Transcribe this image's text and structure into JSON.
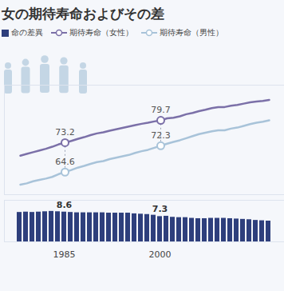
{
  "chart_data": {
    "type": "line",
    "title": "女の期待寿命およびその差",
    "categories": [
      null,
      null,
      null,
      null,
      null,
      null,
      null,
      "1985",
      null,
      null,
      null,
      null,
      null,
      null,
      null,
      null,
      null,
      null,
      null,
      null,
      null,
      null,
      "2000",
      null,
      null,
      null,
      null,
      null,
      null,
      null,
      null,
      null,
      null,
      null,
      null,
      null,
      null,
      null,
      null,
      null
    ],
    "series": [
      {
        "name": "命の差異",
        "type": "bar",
        "axis": "y2",
        "color": "#2e3f7c",
        "values": [
          8.5,
          8.6,
          8.5,
          8.6,
          8.7,
          8.8,
          8.7,
          8.6,
          8.5,
          8.4,
          8.4,
          8.4,
          8.4,
          8.4,
          8.3,
          8.3,
          8.3,
          8.3,
          8.1,
          8.0,
          7.9,
          7.7,
          7.3,
          7.4,
          7.1,
          7.0,
          7.0,
          6.8,
          6.7,
          6.7,
          6.8,
          6.8,
          6.8,
          6.7,
          6.6,
          6.5,
          6.4,
          6.2,
          6.1,
          6.0
        ]
      },
      {
        "name": "期待寿命（女性）",
        "color": "#7b70a8",
        "marker": "circle",
        "line_style": "solid",
        "values": [
          69.4,
          69.9,
          70.4,
          70.9,
          71.4,
          72.0,
          72.7,
          73.2,
          73.7,
          74.3,
          74.8,
          75.4,
          75.9,
          76.2,
          76.7,
          77.1,
          77.5,
          77.9,
          78.3,
          78.7,
          79.0,
          79.4,
          79.7,
          80.3,
          80.5,
          80.9,
          81.5,
          81.9,
          82.4,
          82.8,
          83.3,
          83.6,
          83.6,
          84.0,
          84.2,
          84.6,
          85.0,
          85.2,
          85.4,
          85.7
        ]
      },
      {
        "name": "期待寿命（男性）",
        "color": "#a8c3d9",
        "marker": "circle",
        "line_style": "solid",
        "values": [
          60.9,
          61.3,
          61.9,
          62.3,
          62.7,
          63.2,
          64.0,
          64.6,
          65.2,
          65.9,
          66.4,
          67.0,
          67.5,
          67.8,
          68.4,
          68.8,
          69.2,
          69.6,
          70.2,
          70.7,
          71.1,
          71.7,
          72.3,
          72.9,
          73.4,
          73.9,
          74.5,
          75.1,
          75.7,
          76.1,
          76.5,
          76.8,
          76.8,
          77.3,
          77.6,
          78.1,
          78.6,
          79.0,
          79.3,
          79.7
        ]
      }
    ],
    "ylim": [
      58,
      90
    ],
    "y2lim": [
      0,
      12
    ],
    "data_labels": true,
    "tick_labels": "x",
    "legend": "top-left"
  }
}
